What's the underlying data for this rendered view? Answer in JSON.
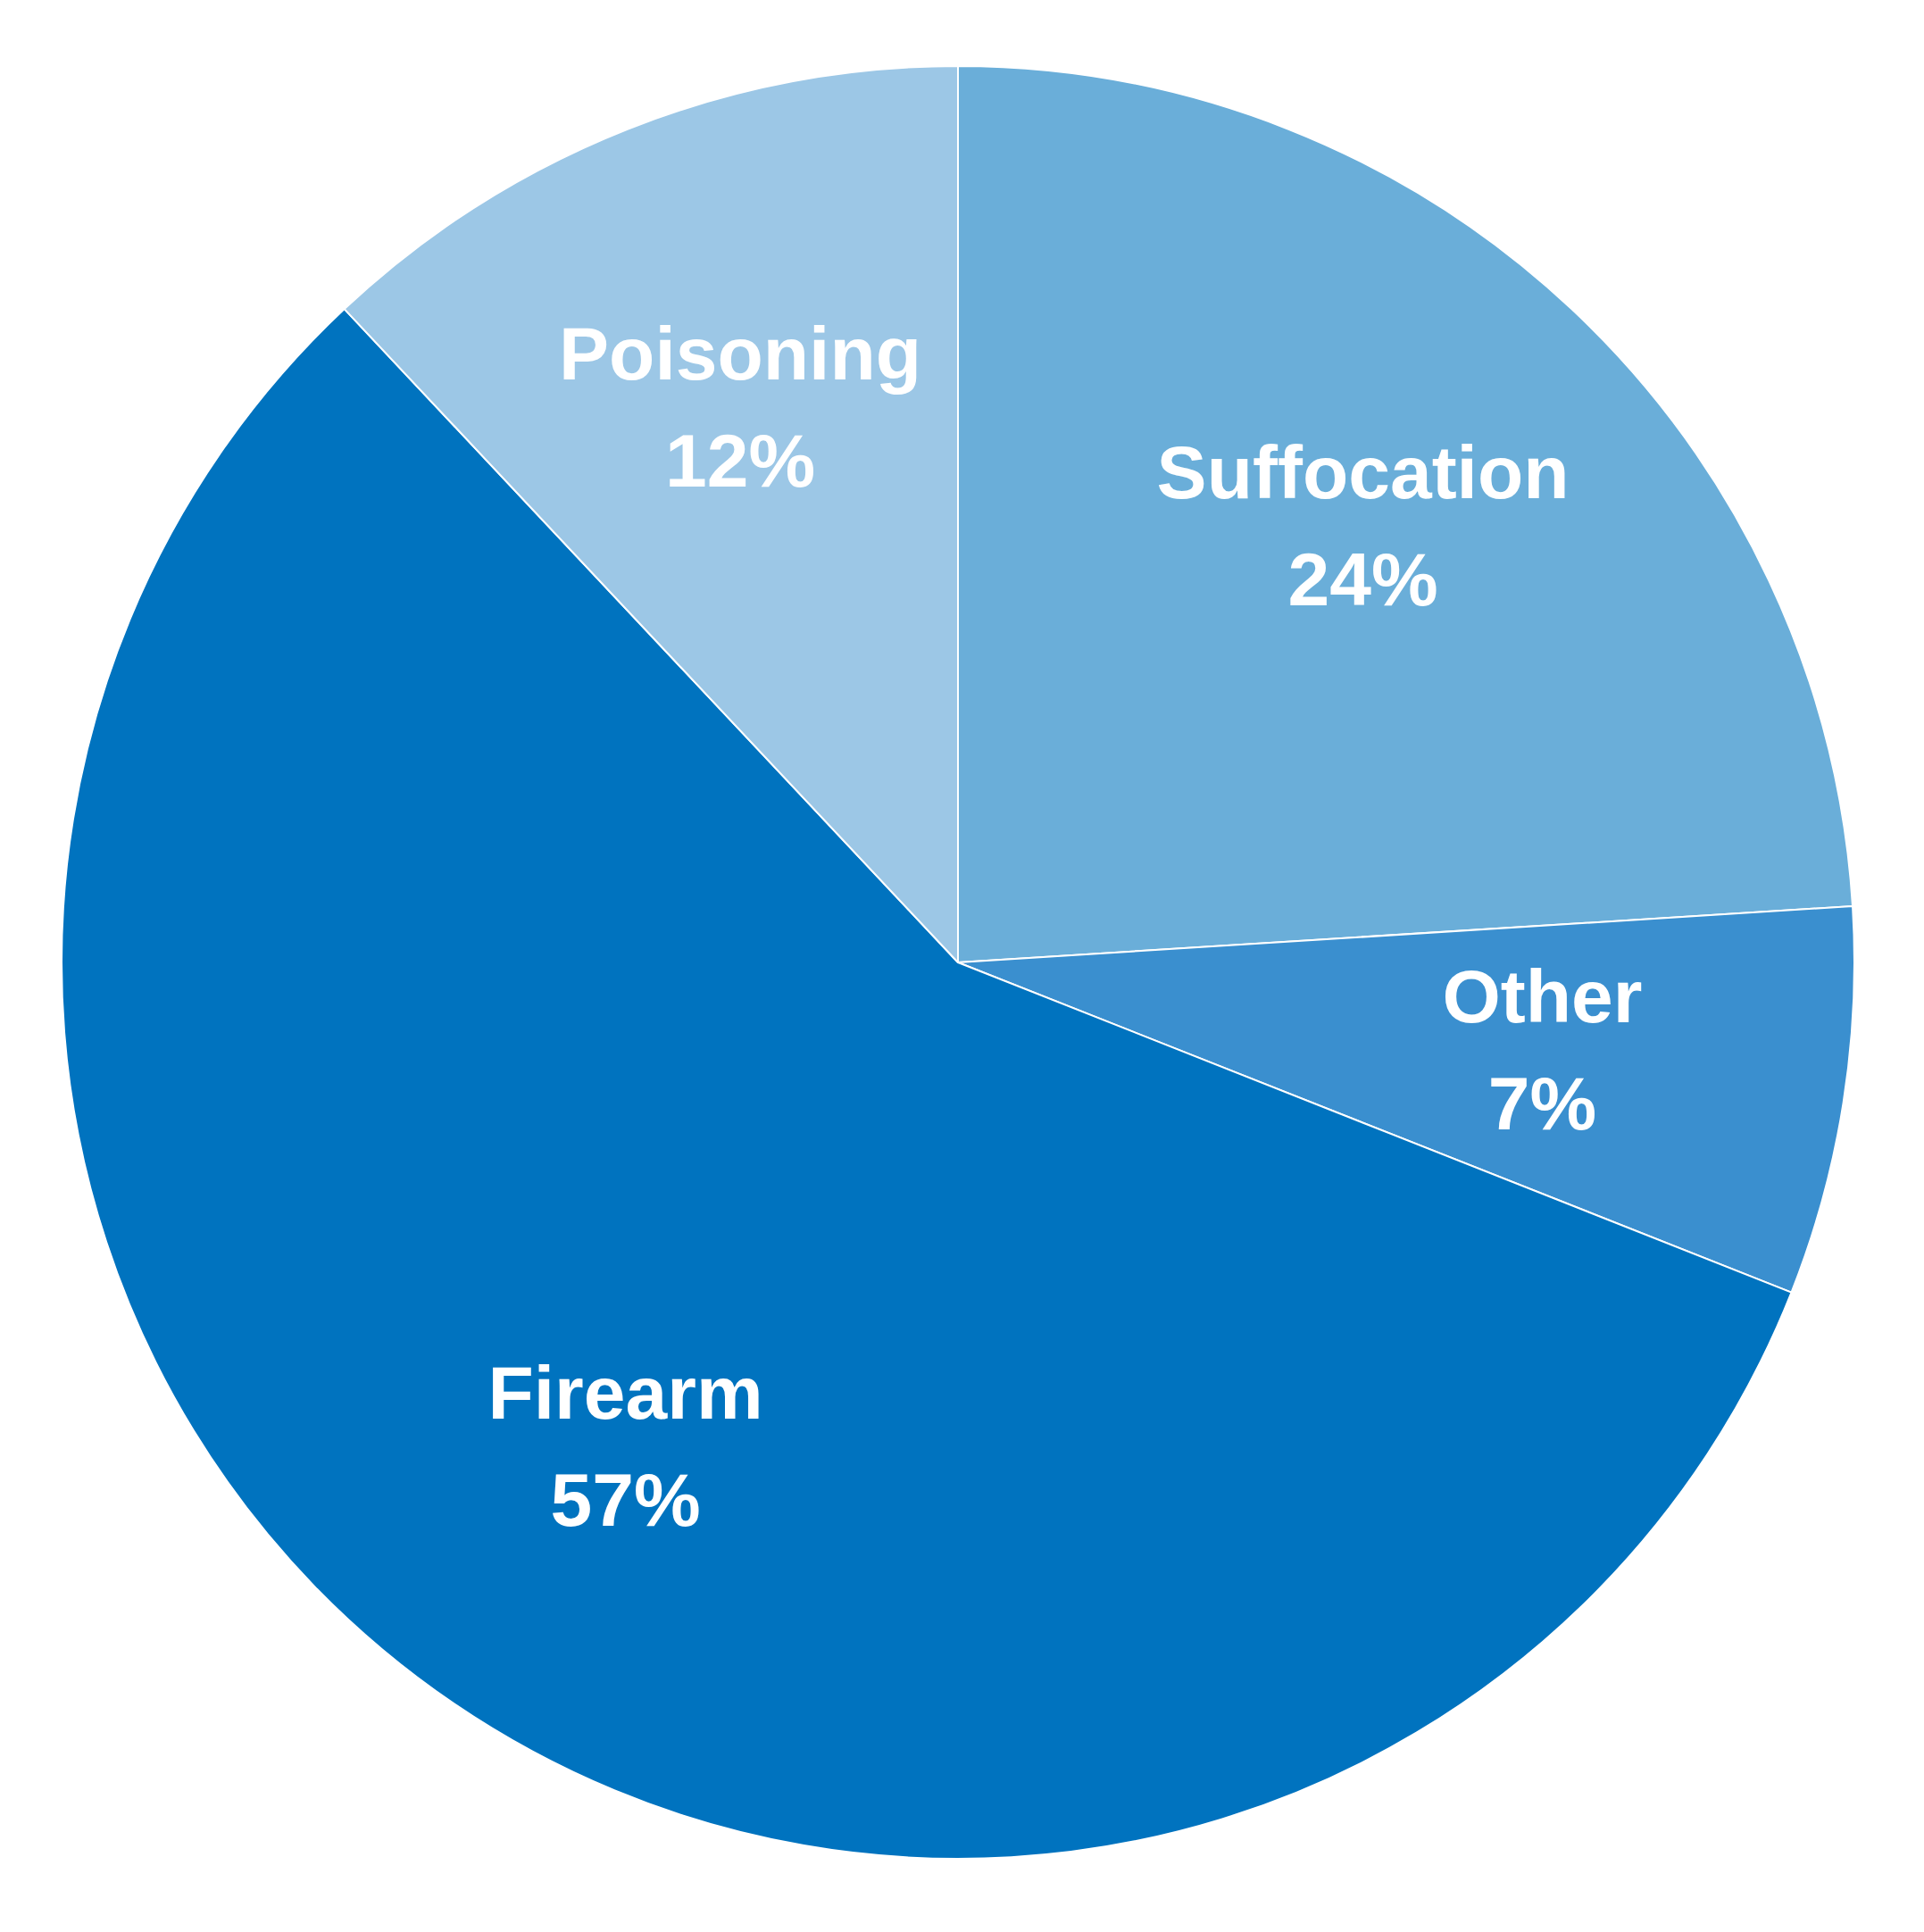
{
  "chart_data": {
    "type": "pie",
    "categories": [
      "Suffocation",
      "Other",
      "Firearm",
      "Poisoning"
    ],
    "values": [
      24,
      7,
      57,
      12
    ],
    "value_labels": [
      "24%",
      "7%",
      "57%",
      "12%"
    ],
    "colors": [
      "#6aaed9",
      "#3a8fcf",
      "#0073bf",
      "#9cc7e6"
    ],
    "legend": false
  }
}
